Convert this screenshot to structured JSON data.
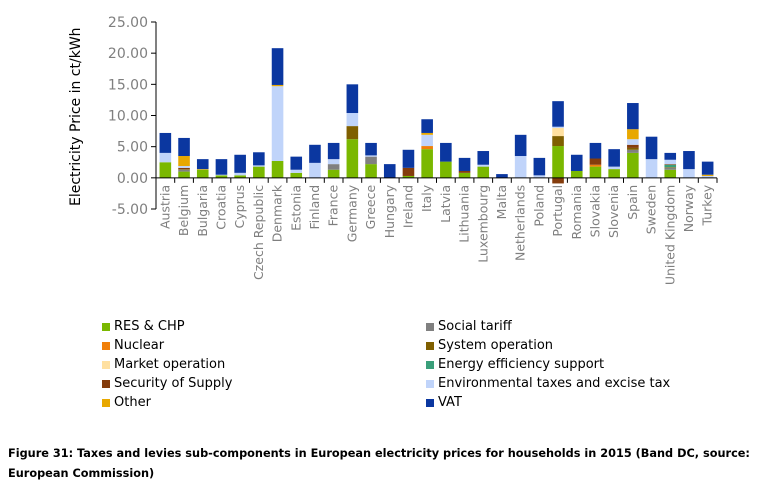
{
  "chart_data": {
    "type": "bar",
    "stacked": true,
    "title": "",
    "xlabel": "",
    "ylabel": "Electricity Price in ct/kWh",
    "ylim": [
      -5,
      25
    ],
    "yticks": [
      25,
      20,
      15,
      10,
      5,
      0,
      -5
    ],
    "ytick_labels": [
      "25.00",
      "20.00",
      "15.00",
      "10.00",
      "5.00",
      "0.00",
      "-5.00"
    ],
    "grid": false,
    "legend_position": "bottom",
    "categories": [
      "Austria",
      "Belgium",
      "Bulgaria",
      "Croatia",
      "Cyprus",
      "Czech Republic",
      "Denmark",
      "Estonia",
      "Finland",
      "France",
      "Germany",
      "Greece",
      "Hungary",
      "Ireland",
      "Italy",
      "Latvia",
      "Lithuania",
      "Luxembourg",
      "Malta",
      "Netherlands",
      "Poland",
      "Portugal",
      "Romania",
      "Slovakia",
      "Slovenia",
      "Spain",
      "Sweden",
      "United Kingdom",
      "Norway",
      "Turkey"
    ],
    "series": [
      {
        "name": "RES & CHP",
        "color": "#7ab800",
        "values": [
          2.5,
          1.0,
          1.3,
          0.4,
          0.4,
          1.8,
          2.7,
          0.8,
          0.0,
          1.3,
          6.2,
          2.2,
          0.0,
          0.3,
          4.6,
          2.6,
          0.8,
          1.8,
          0.0,
          0.0,
          0.0,
          5.1,
          1.1,
          1.8,
          1.4,
          4.0,
          0.0,
          1.3,
          0.0,
          0.0
        ]
      },
      {
        "name": "Social tariff",
        "color": "#808080",
        "values": [
          0,
          0.3,
          0,
          0,
          0,
          0,
          0,
          0,
          0,
          0.9,
          0,
          1.2,
          0,
          0,
          0,
          0,
          0,
          0,
          0,
          0,
          0,
          0,
          0,
          0,
          0,
          0.5,
          0,
          0.3,
          0,
          0
        ]
      },
      {
        "name": "Nuclear",
        "color": "#f07f09",
        "values": [
          0,
          0,
          0,
          0,
          0,
          0,
          0,
          0,
          0,
          0,
          0,
          0,
          0,
          0,
          0.5,
          0,
          0,
          0,
          0,
          0,
          0,
          0,
          0,
          0.3,
          0,
          0,
          0,
          0,
          0,
          0
        ]
      },
      {
        "name": "System operation",
        "color": "#7f5f00",
        "values": [
          0,
          0.1,
          0,
          0,
          0,
          0,
          0,
          0,
          0,
          0,
          2.1,
          0,
          0,
          0,
          0,
          0,
          0,
          0,
          0,
          0,
          0,
          1.6,
          0,
          0,
          0,
          0.3,
          0,
          0.1,
          0,
          0
        ]
      },
      {
        "name": "Market operation",
        "color": "#ffe0a0",
        "values": [
          0,
          0,
          0,
          0,
          0,
          0,
          0,
          0,
          0,
          0,
          0,
          0,
          0,
          0,
          0,
          0,
          0,
          0,
          0,
          0,
          0,
          1.3,
          0,
          0,
          0,
          0,
          0,
          0,
          0,
          0
        ]
      },
      {
        "name": "Energy efficiency support",
        "color": "#3a9f7a",
        "values": [
          0,
          0,
          0,
          0,
          0,
          0,
          0,
          0,
          0,
          0,
          0,
          0,
          0,
          0,
          0,
          0,
          0,
          0,
          0,
          0,
          0,
          0,
          0,
          0,
          0,
          0,
          0,
          0.4,
          0,
          0
        ]
      },
      {
        "name": "Security of Supply",
        "color": "#843c0c",
        "values": [
          0,
          0.2,
          0,
          0,
          0,
          0,
          0,
          0,
          0,
          0,
          0,
          0,
          0,
          1.3,
          0,
          0,
          0.3,
          0,
          0,
          0,
          0,
          -0.9,
          0,
          1.0,
          0,
          0.5,
          0,
          0.1,
          0,
          0
        ]
      },
      {
        "name": "Environmental taxes and excise tax",
        "color": "#c0d4fa",
        "values": [
          1.5,
          0.3,
          0,
          0.1,
          0.4,
          0.2,
          12.0,
          0.5,
          2.4,
          0.8,
          2.1,
          0.2,
          0,
          0,
          1.8,
          0,
          0,
          0.3,
          0,
          3.5,
          0.4,
          0.2,
          0,
          0,
          0.4,
          0.9,
          3.0,
          0.7,
          1.4,
          0.3
        ]
      },
      {
        "name": "Other",
        "color": "#e8a800",
        "values": [
          0,
          1.6,
          0.1,
          0,
          0,
          0,
          0.2,
          0,
          0,
          0,
          0,
          0,
          0,
          0,
          0.3,
          0,
          0,
          0,
          0,
          0,
          0,
          0,
          0,
          0,
          0,
          1.6,
          0,
          0,
          0,
          0.2
        ]
      },
      {
        "name": "VAT",
        "color": "#0b37a0",
        "values": [
          3.2,
          2.9,
          1.6,
          2.5,
          2.9,
          2.1,
          5.9,
          2.1,
          2.9,
          2.6,
          4.6,
          2.0,
          2.2,
          2.9,
          2.2,
          3.0,
          2.1,
          2.2,
          0.6,
          3.4,
          2.8,
          4.1,
          2.6,
          2.5,
          2.8,
          4.2,
          3.6,
          1.1,
          2.9,
          2.1
        ]
      }
    ]
  },
  "legend": {
    "left": [
      "RES & CHP",
      "Nuclear",
      "Market operation",
      "Security of Supply",
      "Other"
    ],
    "right": [
      "Social tariff",
      "System operation",
      "Energy efficiency support",
      "Environmental taxes and excise tax",
      "VAT"
    ]
  },
  "caption": {
    "line1": "Figure 31: Taxes and levies sub-components in European electricity prices for households in 2015 (Band DC, source:",
    "line2": "European Commission)"
  }
}
